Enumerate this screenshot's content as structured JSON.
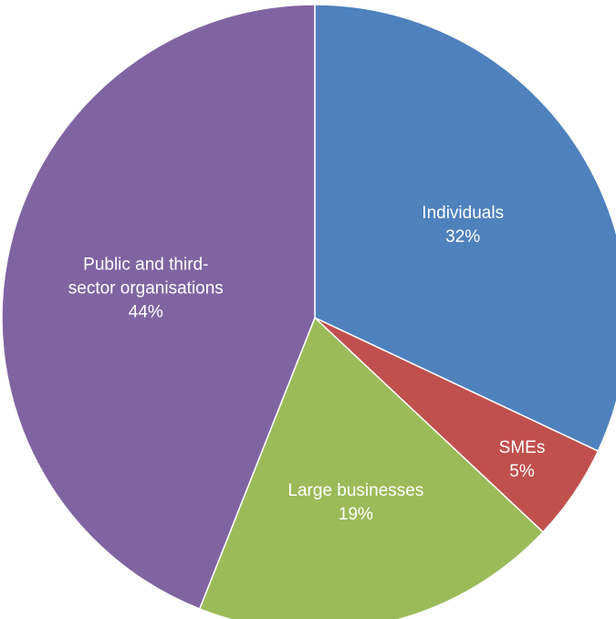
{
  "chart_data": {
    "type": "pie",
    "title": "",
    "slices": [
      {
        "label_lines": [
          "Individuals"
        ],
        "value": 32,
        "value_label": "32%",
        "color": "#4f81bd"
      },
      {
        "label_lines": [
          "SMEs"
        ],
        "value": 5,
        "value_label": "5%",
        "color": "#c0504d"
      },
      {
        "label_lines": [
          "Large businesses"
        ],
        "value": 19,
        "value_label": "19%",
        "color": "#9bbb59"
      },
      {
        "label_lines": [
          "Public and third-",
          "sector organisations"
        ],
        "value": 44,
        "value_label": "44%",
        "color": "#8064a2"
      }
    ],
    "start": "12 o'clock",
    "direction": "clockwise",
    "legend": "none",
    "labels_position": "inside"
  }
}
